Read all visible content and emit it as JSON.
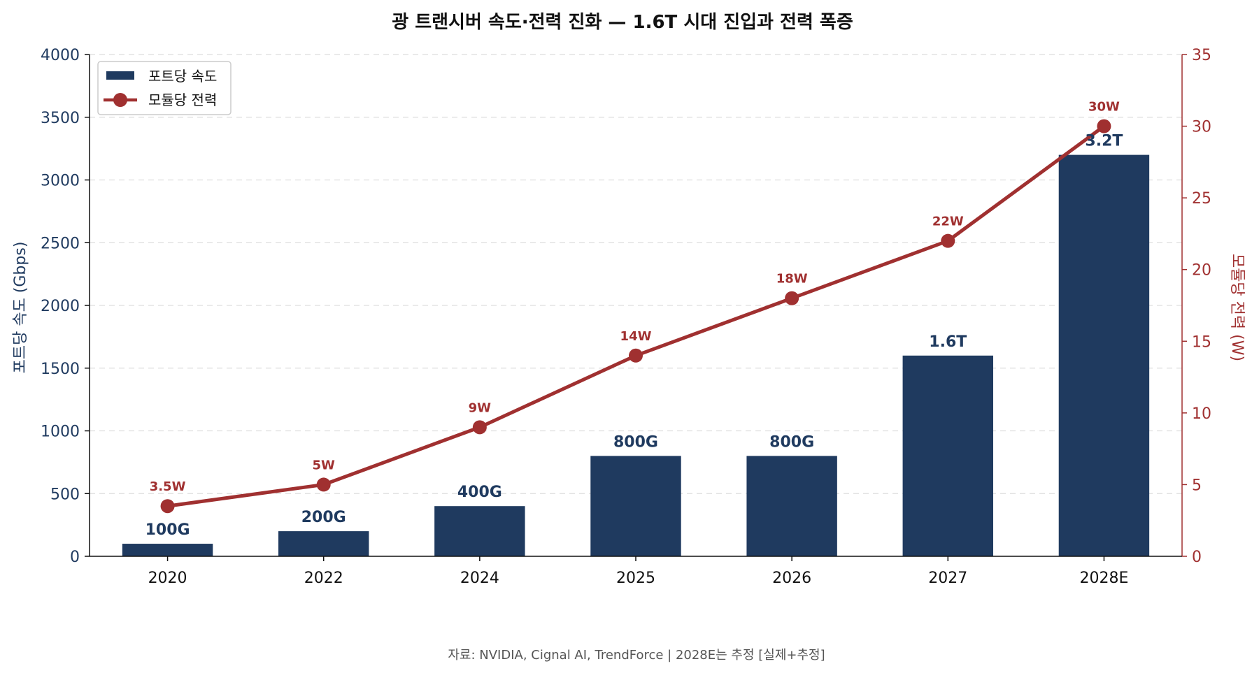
{
  "chart_data": {
    "type": "bar",
    "title": "광 트랜시버 속도·전력 진화 — 1.6T 시대 진입과 전력 폭증",
    "categories": [
      "2020",
      "2022",
      "2024",
      "2025",
      "2026",
      "2027",
      "2028E"
    ],
    "series": [
      {
        "name": "포트당 속도",
        "type": "bar",
        "axis": "left",
        "values": [
          100,
          200,
          400,
          800,
          800,
          1600,
          3200
        ],
        "labels": [
          "100G",
          "200G",
          "400G",
          "800G",
          "800G",
          "1.6T",
          "3.2T"
        ]
      },
      {
        "name": "모듈당 전력",
        "type": "line",
        "axis": "right",
        "values": [
          3.5,
          5,
          9,
          14,
          18,
          22,
          30
        ],
        "labels": [
          "3.5W",
          "5W",
          "9W",
          "14W",
          "18W",
          "22W",
          "30W"
        ]
      }
    ],
    "ylabel_left": "포트당 속도 (Gbps)",
    "ylabel_right": "모듈당 전력 (W)",
    "ylim_left": [
      0,
      4000
    ],
    "yticks_left": [
      0,
      500,
      1000,
      1500,
      2000,
      2500,
      3000,
      3500,
      4000
    ],
    "ylim_right": [
      0,
      35
    ],
    "yticks_right": [
      0,
      5,
      10,
      15,
      20,
      25,
      30,
      35
    ],
    "grid": "horizontal-dashed",
    "legend_position": "top-left",
    "source": "자료: NVIDIA, Cignal AI, TrendForce | 2028E는 추정 [실제+추정]",
    "colors": {
      "bar": "#1f3a5f",
      "line": "#a03030",
      "grid": "#dddddd"
    }
  }
}
